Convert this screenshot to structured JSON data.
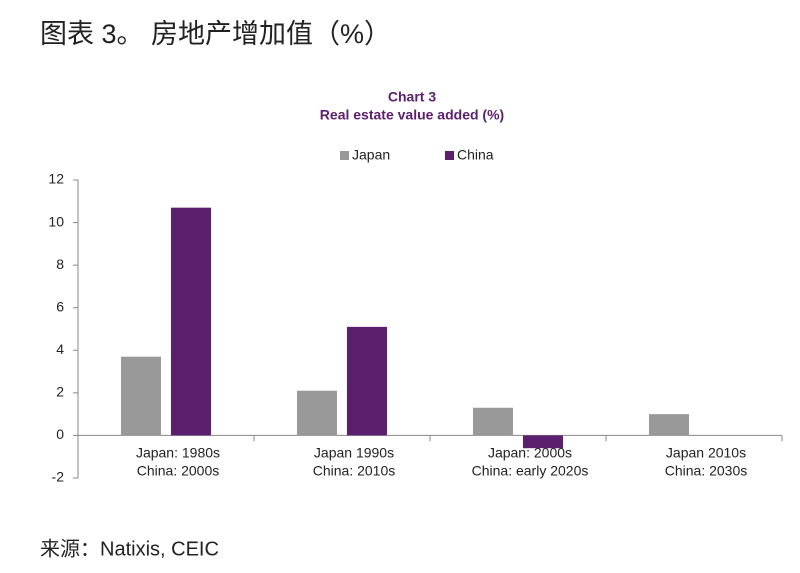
{
  "header": {
    "title": "图表 3。 房地产增加值（%）"
  },
  "chart_data": {
    "type": "bar",
    "title": "Chart 3",
    "subtitle": "Real estate value added (%)",
    "categories": [
      [
        "Japan: 1980s",
        "China: 2000s"
      ],
      [
        "Japan 1990s",
        "China: 2010s"
      ],
      [
        "Japan: 2000s",
        "China: early 2020s"
      ],
      [
        "Japan 2010s",
        "China: 2030s"
      ]
    ],
    "series": [
      {
        "name": "Japan",
        "color": "#999999",
        "values": [
          3.7,
          2.1,
          1.3,
          1.0
        ]
      },
      {
        "name": "China",
        "color": "#5c1f6e",
        "values": [
          10.7,
          5.1,
          -0.6,
          null
        ]
      }
    ],
    "ylim": [
      -2,
      12
    ],
    "yticks": [
      -2,
      0,
      2,
      4,
      6,
      8,
      10,
      12
    ],
    "grid": false,
    "legend": "top"
  },
  "footer": {
    "source": "来源：Natixis, CEIC"
  }
}
